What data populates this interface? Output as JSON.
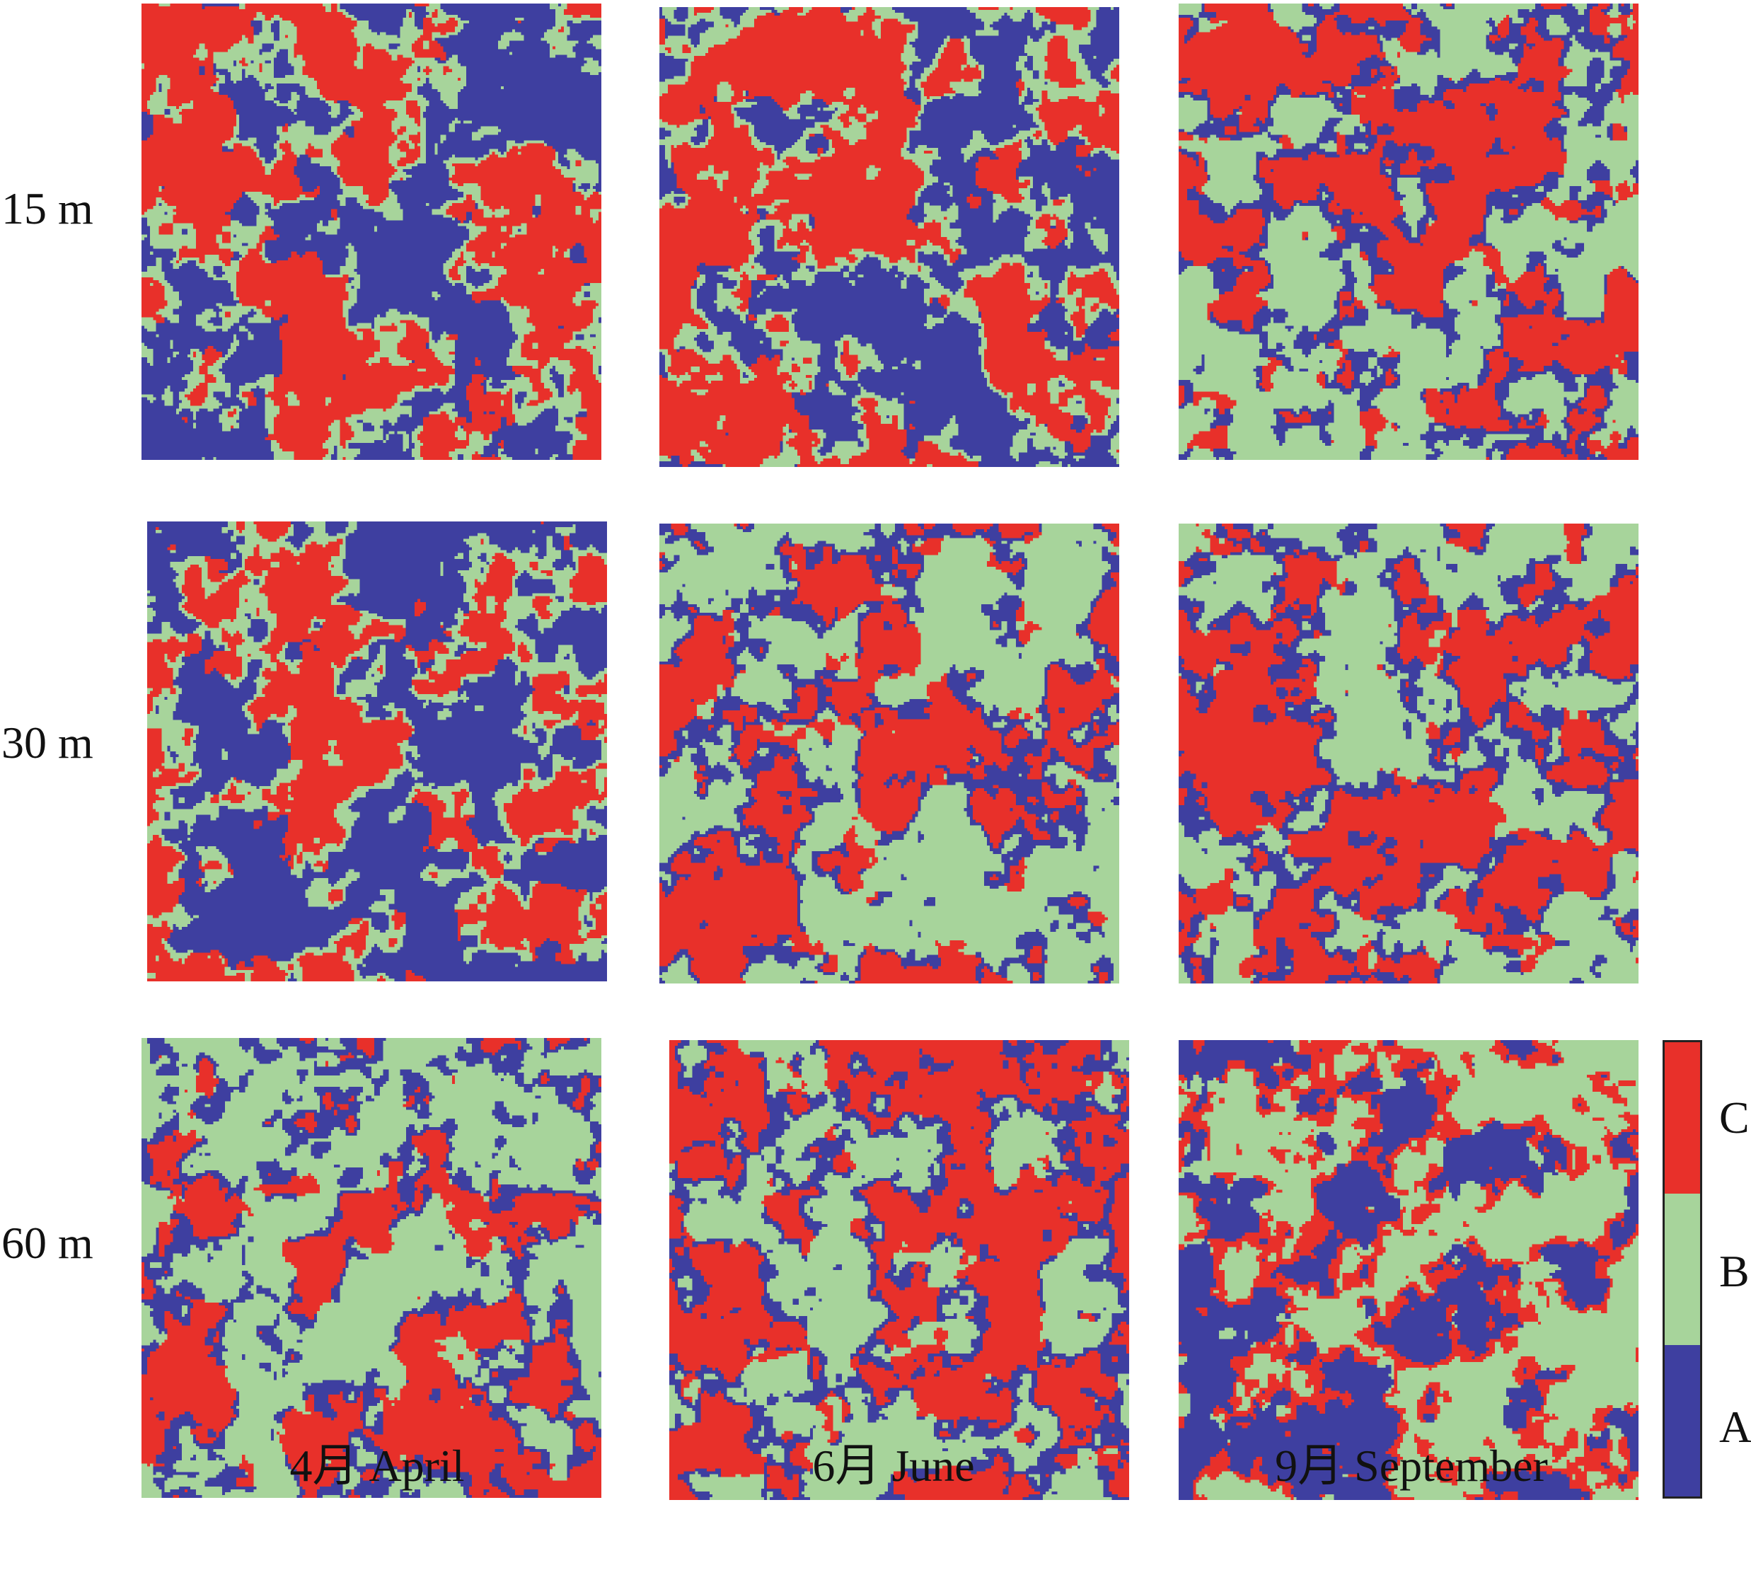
{
  "figure": {
    "row_labels": [
      "15 m",
      "30 m",
      "60 m"
    ],
    "column_labels": [
      "4月 April",
      "6月 June",
      "9月 September"
    ]
  },
  "legend": {
    "classes": [
      {
        "label": "C",
        "color": "#e8302a"
      },
      {
        "label": "B",
        "color": "#a7d49b"
      },
      {
        "label": "A",
        "color": "#3e3fa0"
      }
    ]
  },
  "panels": [
    {
      "row": "15 m",
      "col": "4月 April",
      "dominant": [
        "C",
        "B",
        "A"
      ]
    },
    {
      "row": "15 m",
      "col": "6月 June",
      "dominant": [
        "C",
        "B",
        "A"
      ]
    },
    {
      "row": "15 m",
      "col": "9月 September",
      "dominant": [
        "B",
        "A",
        "C"
      ]
    },
    {
      "row": "30 m",
      "col": "4月 April",
      "dominant": [
        "A",
        "B",
        "C"
      ]
    },
    {
      "row": "30 m",
      "col": "6月 June",
      "dominant": [
        "B",
        "A",
        "C"
      ]
    },
    {
      "row": "30 m",
      "col": "9月 September",
      "dominant": [
        "B",
        "A",
        "C"
      ]
    },
    {
      "row": "60 m",
      "col": "4月 April",
      "dominant": [
        "C",
        "A",
        "B"
      ]
    },
    {
      "row": "60 m",
      "col": "6月 June",
      "dominant": [
        "B",
        "A",
        "C"
      ]
    },
    {
      "row": "60 m",
      "col": "9月 September",
      "dominant": [
        "A",
        "C",
        "B"
      ]
    }
  ]
}
